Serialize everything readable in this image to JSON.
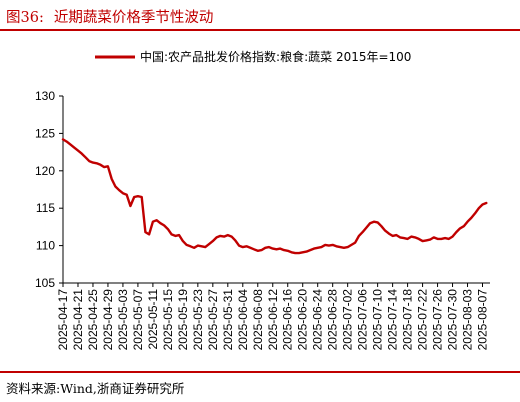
{
  "figure": {
    "label": "图36:",
    "title": "近期蔬菜价格季节性波动",
    "source": "资料来源:Wind,浙商证券研究所"
  },
  "colors": {
    "accent": "#c00000",
    "series": "#c00000"
  },
  "chart_data": {
    "type": "line",
    "legend_position": "top",
    "grid": false,
    "ylim": [
      105,
      130
    ],
    "yticks": [
      105,
      110,
      115,
      120,
      125,
      130
    ],
    "xlim": [
      "2025-04-17",
      "2025-08-09"
    ],
    "xticks": [
      "2025-04-17",
      "2025-04-21",
      "2025-04-25",
      "2025-04-29",
      "2025-05-03",
      "2025-05-07",
      "2025-05-11",
      "2025-05-15",
      "2025-05-19",
      "2025-05-23",
      "2025-05-27",
      "2025-05-31",
      "2025-06-04",
      "2025-06-08",
      "2025-06-12",
      "2025-06-16",
      "2025-06-20",
      "2025-06-24",
      "2025-06-28",
      "2025-07-02",
      "2025-07-06",
      "2025-07-10",
      "2025-07-14",
      "2025-07-18",
      "2025-07-22",
      "2025-07-26",
      "2025-07-30",
      "2025-08-03",
      "2025-08-07"
    ],
    "series": [
      {
        "name": "中国:农产品批发价格指数:粮食:蔬菜 2015年=100",
        "points": [
          [
            "2025-04-17",
            124.2
          ],
          [
            "2025-04-18",
            123.9
          ],
          [
            "2025-04-19",
            123.5
          ],
          [
            "2025-04-20",
            123.1
          ],
          [
            "2025-04-21",
            122.7
          ],
          [
            "2025-04-22",
            122.3
          ],
          [
            "2025-04-23",
            121.8
          ],
          [
            "2025-04-24",
            121.3
          ],
          [
            "2025-04-25",
            121.1
          ],
          [
            "2025-04-26",
            121.0
          ],
          [
            "2025-04-27",
            120.8
          ],
          [
            "2025-04-28",
            120.5
          ],
          [
            "2025-04-29",
            120.6
          ],
          [
            "2025-04-30",
            118.9
          ],
          [
            "2025-05-01",
            117.9
          ],
          [
            "2025-05-02",
            117.4
          ],
          [
            "2025-05-03",
            117.0
          ],
          [
            "2025-05-04",
            116.8
          ],
          [
            "2025-05-05",
            115.3
          ],
          [
            "2025-05-06",
            116.5
          ],
          [
            "2025-05-07",
            116.6
          ],
          [
            "2025-05-08",
            116.5
          ],
          [
            "2025-05-09",
            111.8
          ],
          [
            "2025-05-10",
            111.5
          ],
          [
            "2025-05-11",
            113.2
          ],
          [
            "2025-05-12",
            113.4
          ],
          [
            "2025-05-13",
            113.0
          ],
          [
            "2025-05-14",
            112.7
          ],
          [
            "2025-05-15",
            112.2
          ],
          [
            "2025-05-16",
            111.5
          ],
          [
            "2025-05-17",
            111.3
          ],
          [
            "2025-05-18",
            111.4
          ],
          [
            "2025-05-19",
            110.6
          ],
          [
            "2025-05-20",
            110.1
          ],
          [
            "2025-05-21",
            109.9
          ],
          [
            "2025-05-22",
            109.7
          ],
          [
            "2025-05-23",
            110.0
          ],
          [
            "2025-05-24",
            109.9
          ],
          [
            "2025-05-25",
            109.8
          ],
          [
            "2025-05-26",
            110.2
          ],
          [
            "2025-05-27",
            110.6
          ],
          [
            "2025-05-28",
            111.1
          ],
          [
            "2025-05-29",
            111.3
          ],
          [
            "2025-05-30",
            111.2
          ],
          [
            "2025-05-31",
            111.4
          ],
          [
            "2025-06-01",
            111.2
          ],
          [
            "2025-06-02",
            110.7
          ],
          [
            "2025-06-03",
            110.0
          ],
          [
            "2025-06-04",
            109.8
          ],
          [
            "2025-06-05",
            109.9
          ],
          [
            "2025-06-06",
            109.7
          ],
          [
            "2025-06-07",
            109.5
          ],
          [
            "2025-06-08",
            109.3
          ],
          [
            "2025-06-09",
            109.4
          ],
          [
            "2025-06-10",
            109.7
          ],
          [
            "2025-06-11",
            109.8
          ],
          [
            "2025-06-12",
            109.6
          ],
          [
            "2025-06-13",
            109.5
          ],
          [
            "2025-06-14",
            109.6
          ],
          [
            "2025-06-15",
            109.4
          ],
          [
            "2025-06-16",
            109.3
          ],
          [
            "2025-06-17",
            109.1
          ],
          [
            "2025-06-18",
            109.0
          ],
          [
            "2025-06-19",
            109.0
          ],
          [
            "2025-06-20",
            109.1
          ],
          [
            "2025-06-21",
            109.2
          ],
          [
            "2025-06-22",
            109.4
          ],
          [
            "2025-06-23",
            109.6
          ],
          [
            "2025-06-24",
            109.7
          ],
          [
            "2025-06-25",
            109.8
          ],
          [
            "2025-06-26",
            110.1
          ],
          [
            "2025-06-27",
            110.0
          ],
          [
            "2025-06-28",
            110.1
          ],
          [
            "2025-06-29",
            109.9
          ],
          [
            "2025-06-30",
            109.8
          ],
          [
            "2025-07-01",
            109.7
          ],
          [
            "2025-07-02",
            109.8
          ],
          [
            "2025-07-03",
            110.1
          ],
          [
            "2025-07-04",
            110.4
          ],
          [
            "2025-07-05",
            111.3
          ],
          [
            "2025-07-06",
            111.8
          ],
          [
            "2025-07-07",
            112.4
          ],
          [
            "2025-07-08",
            113.0
          ],
          [
            "2025-07-09",
            113.2
          ],
          [
            "2025-07-10",
            113.1
          ],
          [
            "2025-07-11",
            112.6
          ],
          [
            "2025-07-12",
            112.0
          ],
          [
            "2025-07-13",
            111.6
          ],
          [
            "2025-07-14",
            111.3
          ],
          [
            "2025-07-15",
            111.4
          ],
          [
            "2025-07-16",
            111.1
          ],
          [
            "2025-07-17",
            111.0
          ],
          [
            "2025-07-18",
            110.9
          ],
          [
            "2025-07-19",
            111.2
          ],
          [
            "2025-07-20",
            111.1
          ],
          [
            "2025-07-21",
            110.9
          ],
          [
            "2025-07-22",
            110.6
          ],
          [
            "2025-07-23",
            110.7
          ],
          [
            "2025-07-24",
            110.8
          ],
          [
            "2025-07-25",
            111.1
          ],
          [
            "2025-07-26",
            110.9
          ],
          [
            "2025-07-27",
            110.9
          ],
          [
            "2025-07-28",
            111.0
          ],
          [
            "2025-07-29",
            110.9
          ],
          [
            "2025-07-30",
            111.2
          ],
          [
            "2025-07-31",
            111.8
          ],
          [
            "2025-08-01",
            112.3
          ],
          [
            "2025-08-02",
            112.6
          ],
          [
            "2025-08-03",
            113.2
          ],
          [
            "2025-08-04",
            113.7
          ],
          [
            "2025-08-05",
            114.3
          ],
          [
            "2025-08-06",
            115.0
          ],
          [
            "2025-08-07",
            115.5
          ],
          [
            "2025-08-08",
            115.7
          ]
        ]
      }
    ]
  }
}
